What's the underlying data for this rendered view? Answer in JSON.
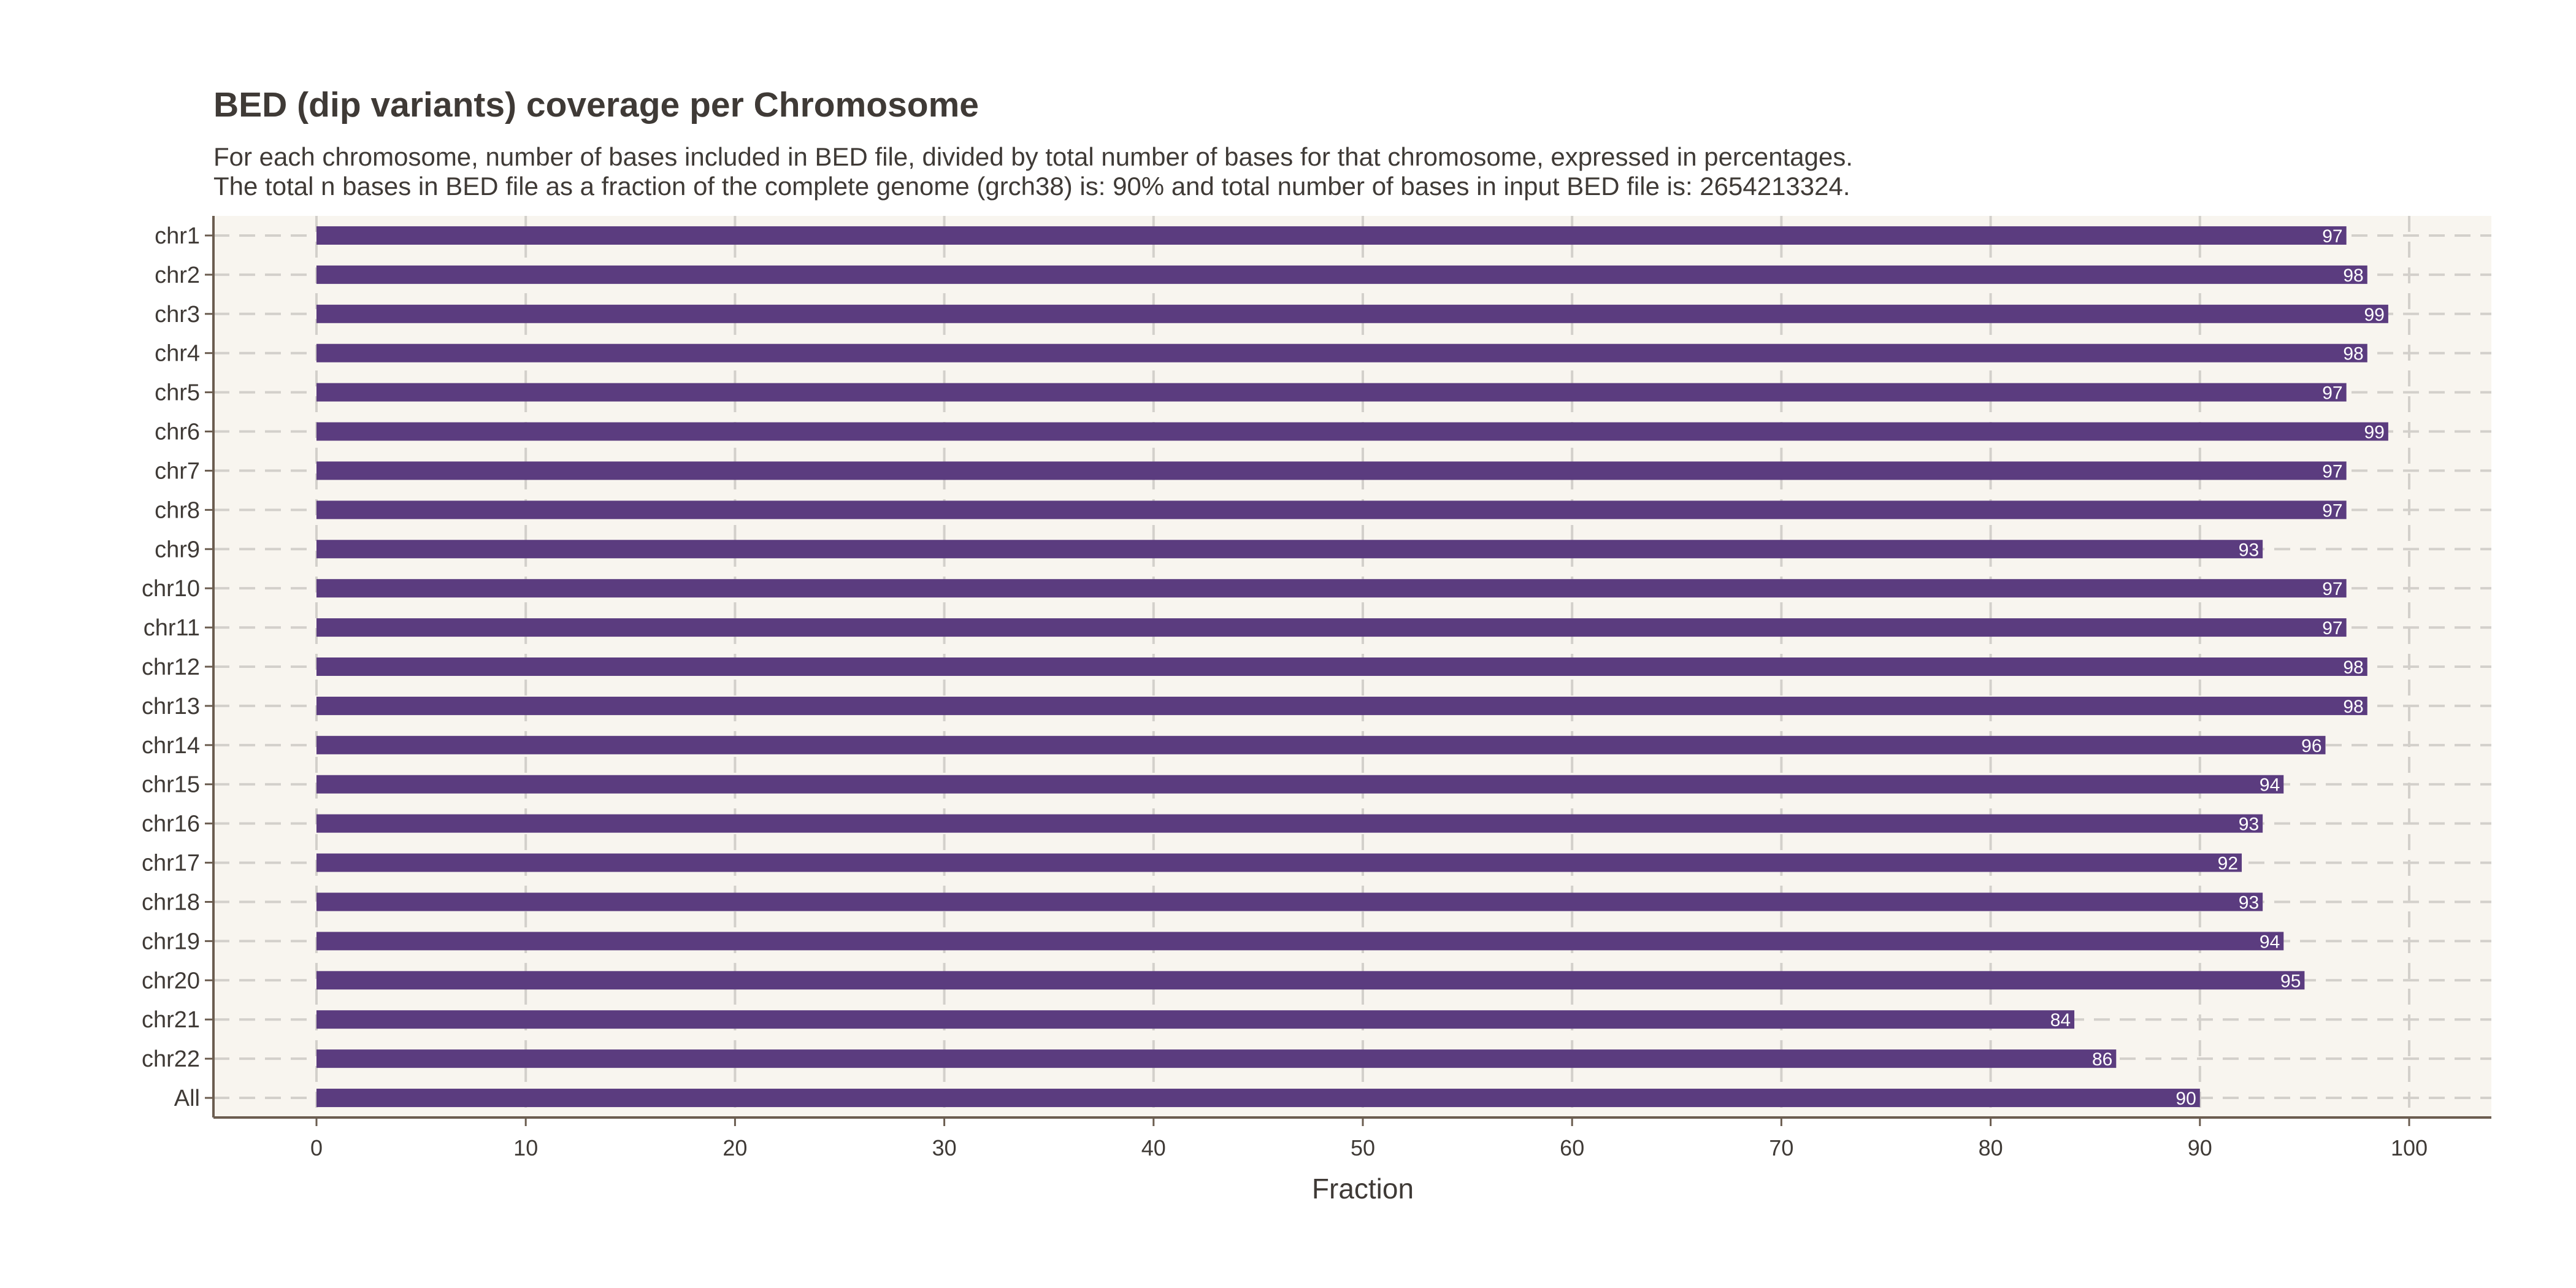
{
  "chart_data": {
    "type": "bar",
    "orientation": "horizontal",
    "title": "BED (dip variants) coverage per Chromosome",
    "subtitle": [
      "For each chromosome, number of bases included in BED file, divided by total number of bases for that chromosome, expressed in percentages.",
      "The total n bases in BED file as a fraction of the complete genome (grch38) is: 90% and total number of bases in input BED file is: 2654213324."
    ],
    "xlabel": "Fraction",
    "ylabel": "",
    "xlim": [
      -5,
      104
    ],
    "xticks": [
      0,
      10,
      20,
      30,
      40,
      50,
      60,
      70,
      80,
      90,
      100
    ],
    "grid": true,
    "bar_color": "#5b3c7f",
    "background_color": "#f8f5ef",
    "categories": [
      "chr1",
      "chr2",
      "chr3",
      "chr4",
      "chr5",
      "chr6",
      "chr7",
      "chr8",
      "chr9",
      "chr10",
      "chr11",
      "chr12",
      "chr13",
      "chr14",
      "chr15",
      "chr16",
      "chr17",
      "chr18",
      "chr19",
      "chr20",
      "chr21",
      "chr22",
      "All"
    ],
    "values": [
      97,
      98,
      99,
      98,
      97,
      99,
      97,
      97,
      93,
      97,
      97,
      98,
      98,
      96,
      94,
      93,
      92,
      93,
      94,
      95,
      84,
      86,
      90
    ]
  }
}
